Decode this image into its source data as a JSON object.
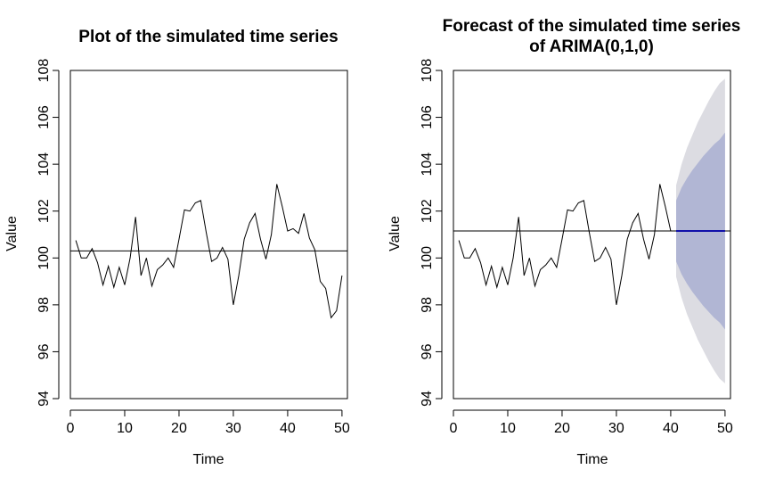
{
  "chart_data": [
    {
      "type": "line",
      "title": "Plot of the simulated time series",
      "xlabel": "Time",
      "ylabel": "Value",
      "xlim": [
        0,
        51
      ],
      "ylim": [
        94,
        108
      ],
      "x_ticks": [
        0,
        10,
        20,
        30,
        40,
        50
      ],
      "y_ticks": [
        94,
        96,
        98,
        100,
        102,
        104,
        106,
        108
      ],
      "x": [
        1,
        2,
        3,
        4,
        5,
        6,
        7,
        8,
        9,
        10,
        11,
        12,
        13,
        14,
        15,
        16,
        17,
        18,
        19,
        20,
        21,
        22,
        23,
        24,
        25,
        26,
        27,
        28,
        29,
        30,
        31,
        32,
        33,
        34,
        35,
        36,
        37,
        38,
        39,
        40,
        41,
        42,
        43,
        44,
        45,
        46,
        47,
        48,
        49,
        50
      ],
      "series": [
        {
          "values": [
            100.75,
            100,
            100,
            100.4,
            99.8,
            98.85,
            99.65,
            98.75,
            99.6,
            98.85,
            100,
            101.75,
            99.25,
            100,
            98.8,
            99.5,
            99.7,
            100,
            99.6,
            100.8,
            102.05,
            102,
            102.35,
            102.45,
            101.1,
            99.85,
            100,
            100.45,
            99.95,
            98,
            99.25,
            100.8,
            101.5,
            101.9,
            100.8,
            99.95,
            101,
            103.15,
            102.2,
            101.15,
            101.25,
            101.05,
            101.9,
            100.85,
            100.35,
            99,
            98.7,
            97.45,
            97.75,
            99.25
          ]
        }
      ],
      "hline": 100.3
    },
    {
      "type": "line",
      "title_lines": [
        "Forecast of the simulated time series",
        "of ARIMA(0,1,0)"
      ],
      "xlabel": "Time",
      "ylabel": "Value",
      "xlim": [
        0,
        51
      ],
      "ylim": [
        94,
        108
      ],
      "x_ticks": [
        0,
        10,
        20,
        30,
        40,
        50
      ],
      "y_ticks": [
        94,
        96,
        98,
        100,
        102,
        104,
        106,
        108
      ],
      "x": [
        1,
        2,
        3,
        4,
        5,
        6,
        7,
        8,
        9,
        10,
        11,
        12,
        13,
        14,
        15,
        16,
        17,
        18,
        19,
        20,
        21,
        22,
        23,
        24,
        25,
        26,
        27,
        28,
        29,
        30,
        31,
        32,
        33,
        34,
        35,
        36,
        37,
        38,
        39,
        40
      ],
      "series": [
        {
          "values": [
            100.75,
            100,
            100,
            100.4,
            99.8,
            98.85,
            99.65,
            98.75,
            99.6,
            98.85,
            100,
            101.75,
            99.25,
            100,
            98.8,
            99.5,
            99.7,
            100,
            99.6,
            100.8,
            102.05,
            102,
            102.35,
            102.45,
            101.1,
            99.85,
            100,
            100.45,
            99.95,
            98,
            99.25,
            100.8,
            101.5,
            101.9,
            100.8,
            99.95,
            101,
            103.15,
            102.2,
            101.15
          ]
        }
      ],
      "hline": 101.15,
      "forecast": {
        "x": [
          41,
          42,
          43,
          44,
          45,
          46,
          47,
          48,
          49,
          50
        ],
        "mean": [
          101.15,
          101.15,
          101.15,
          101.15,
          101.15,
          101.15,
          101.15,
          101.15,
          101.15,
          101.15
        ],
        "lo80": [
          99.85,
          99.3,
          98.9,
          98.55,
          98.25,
          97.95,
          97.7,
          97.45,
          97.25,
          96.95
        ],
        "hi80": [
          102.45,
          103.0,
          103.4,
          103.75,
          104.05,
          104.35,
          104.6,
          104.85,
          105.05,
          105.35
        ],
        "lo95": [
          99.2,
          98.3,
          97.6,
          97.05,
          96.5,
          96.05,
          95.6,
          95.2,
          94.85,
          94.65
        ],
        "hi95": [
          103.1,
          104.0,
          104.7,
          105.25,
          105.8,
          106.25,
          106.7,
          107.1,
          107.45,
          107.65
        ],
        "colors": {
          "band95": "#dcdce2",
          "band80": "#b1b6d4",
          "mean": "#1111aa"
        }
      }
    }
  ]
}
